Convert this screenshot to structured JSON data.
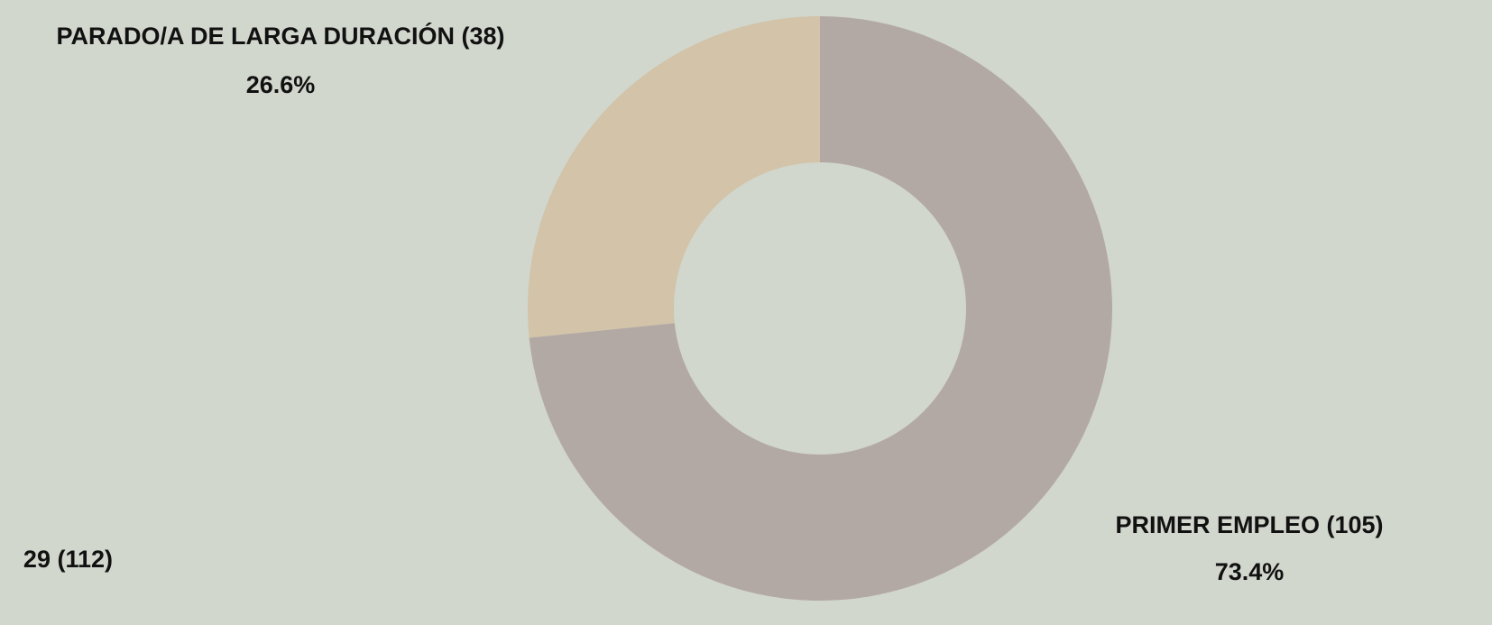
{
  "chart_data": {
    "type": "donut",
    "categories": [
      "PRIMER EMPLEO (105)",
      "PARADO/A DE LARGA DURACIÓN (38)"
    ],
    "values": [
      73.4,
      26.6
    ],
    "value_labels": [
      "73.4%",
      "26.6%"
    ],
    "colors": [
      "#b3a9a4",
      "#d2c3a9"
    ],
    "annotation": "29 (112)"
  }
}
